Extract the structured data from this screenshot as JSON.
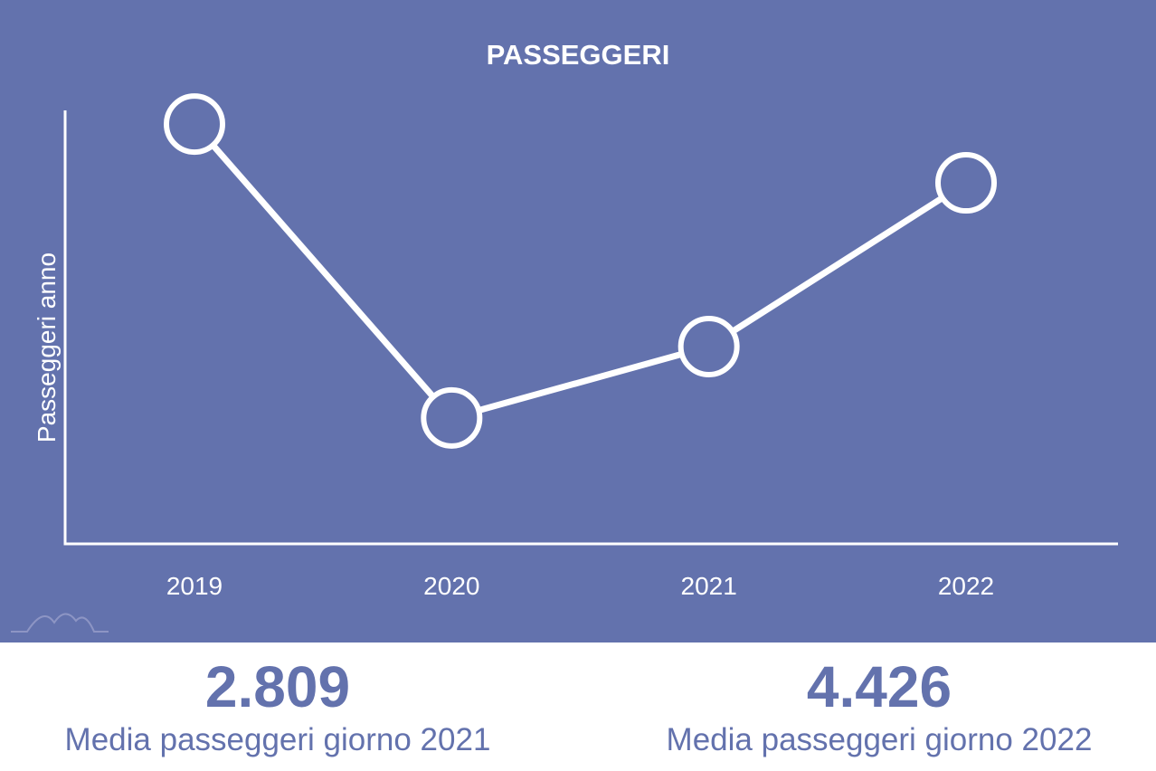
{
  "chart_data": {
    "type": "line",
    "title": "PASSEGGERI",
    "xlabel": "",
    "ylabel": "Passeggeri anno",
    "categories": [
      "2019",
      "2020",
      "2021",
      "2022"
    ],
    "values": [
      100,
      30,
      47,
      86
    ],
    "ylim": [
      0,
      108
    ],
    "grid": false,
    "legend": "none",
    "colors": {
      "background": "#6372ad",
      "line": "#ffffff"
    }
  },
  "stats": [
    {
      "value": "2.809",
      "label": "Media passeggeri giorno 2021"
    },
    {
      "value": "4.426",
      "label": "Media passeggeri giorno 2022"
    }
  ],
  "logo": {
    "icon": "mountain-logo-icon"
  }
}
